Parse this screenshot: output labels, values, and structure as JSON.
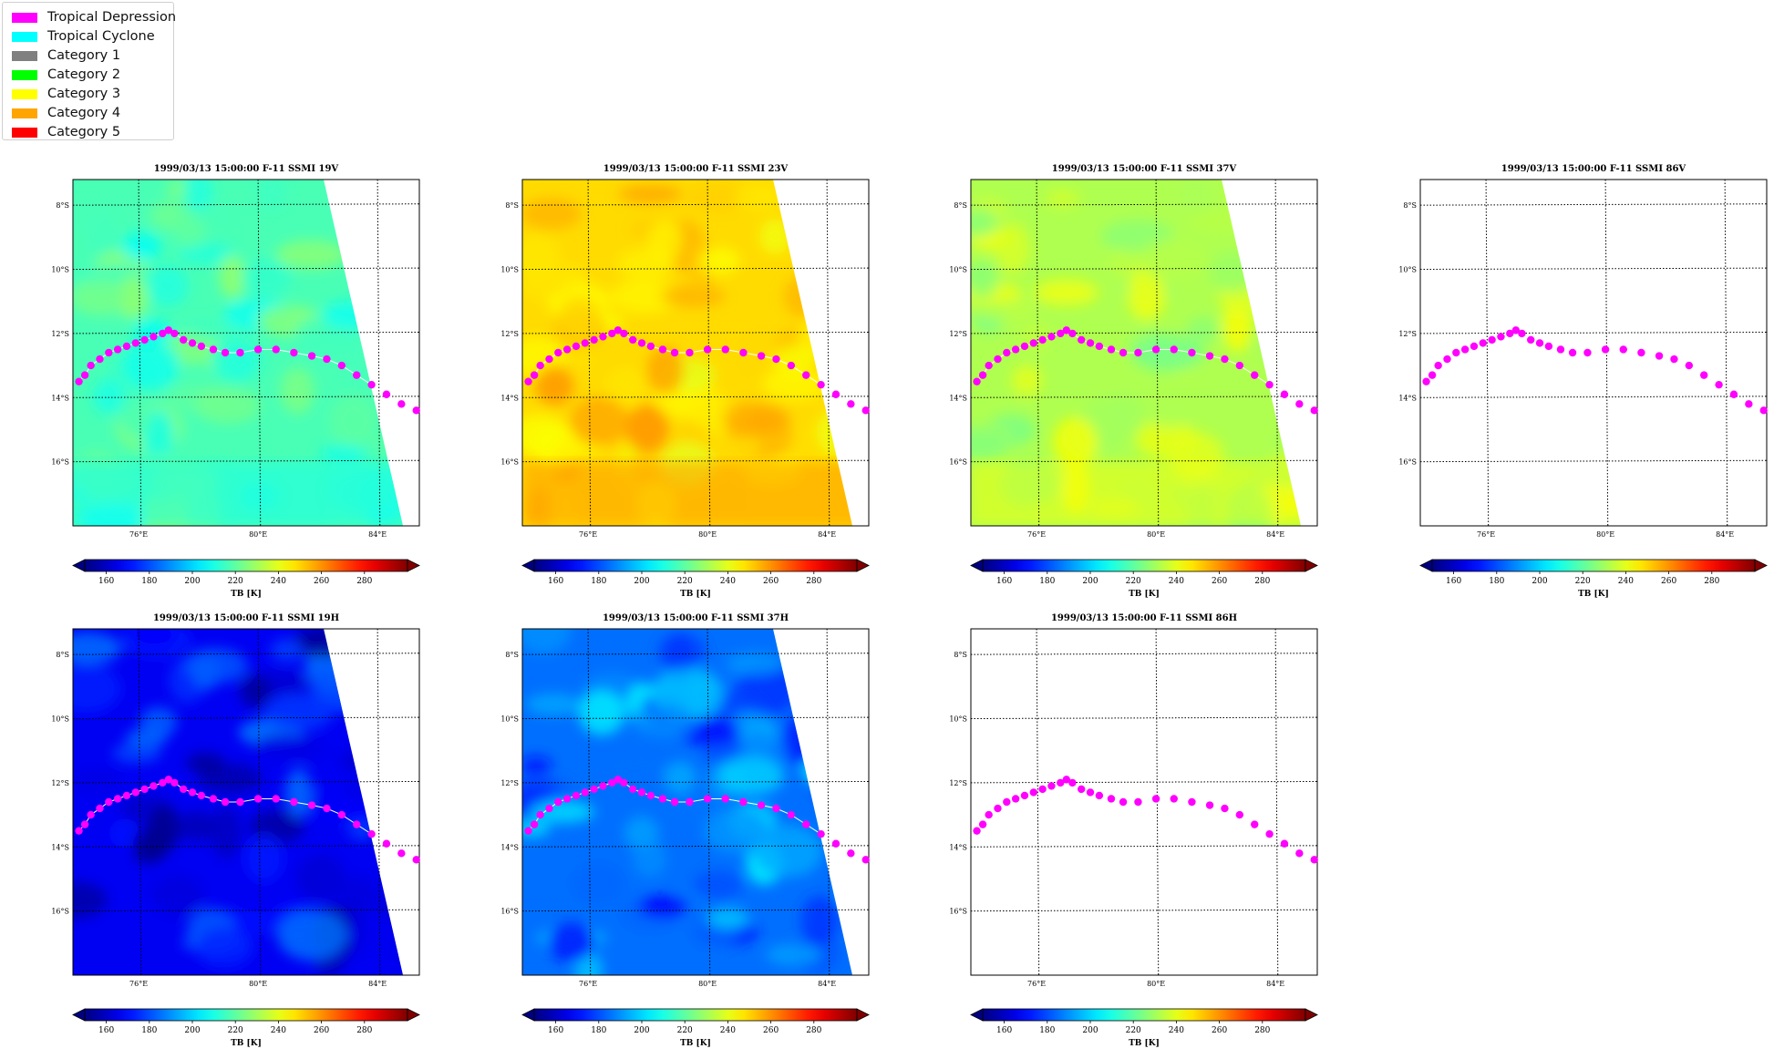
{
  "legend": {
    "items": [
      {
        "label": "Tropical Depression",
        "color": "#ff00ff"
      },
      {
        "label": "Tropical Cyclone",
        "color": "#00ffff"
      },
      {
        "label": "Category 1",
        "color": "#808080"
      },
      {
        "label": "Category 2",
        "color": "#00ff00"
      },
      {
        "label": "Category 3",
        "color": "#ffff00"
      },
      {
        "label": "Category 4",
        "color": "#ffa500"
      },
      {
        "label": "Category 5",
        "color": "#ff0000"
      }
    ]
  },
  "colorbar": {
    "label": "TB [K]",
    "ticks": [
      "160",
      "180",
      "200",
      "220",
      "240",
      "260",
      "280"
    ],
    "range": [
      150,
      300
    ],
    "colormap": "jet",
    "extend": "both"
  },
  "track_color": "#ff00ff",
  "chart_data": [
    {
      "type": "heatmap",
      "title": "1999/03/13 15:00:00  F-11 SSMI 19V",
      "channel": "19V",
      "field_level": 217,
      "swath": true,
      "lat_ticks": [
        "8°S",
        "10°S",
        "12°S",
        "14°S",
        "16°S"
      ],
      "lon_ticks": [
        "76°E",
        "80°E",
        "84°E"
      ]
    },
    {
      "type": "heatmap",
      "title": "1999/03/13 15:00:00  F-11 SSMI 23V",
      "channel": "23V",
      "field_level": 249,
      "swath": true,
      "lat_ticks": [
        "8°S",
        "10°S",
        "12°S",
        "14°S",
        "16°S"
      ],
      "lon_ticks": [
        "76°E",
        "80°E",
        "84°E"
      ]
    },
    {
      "type": "heatmap",
      "title": "1999/03/13 15:00:00  F-11 SSMI 37V",
      "channel": "37V",
      "field_level": 232,
      "swath": true,
      "lat_ticks": [
        "8°S",
        "10°S",
        "12°S",
        "14°S",
        "16°S"
      ],
      "lon_ticks": [
        "76°E",
        "80°E",
        "84°E"
      ]
    },
    {
      "type": "heatmap",
      "title": "1999/03/13 15:00:00  F-11 SSMI 86V",
      "channel": "86V",
      "field_level": null,
      "swath": false,
      "lat_ticks": [
        "8°S",
        "10°S",
        "12°S",
        "14°S",
        "16°S"
      ],
      "lon_ticks": [
        "76°E",
        "80°E",
        "84°E"
      ]
    },
    {
      "type": "heatmap",
      "title": "1999/03/13 15:00:00  F-11 SSMI 19H",
      "channel": "19H",
      "field_level": 167,
      "swath": true,
      "lat_ticks": [
        "8°S",
        "10°S",
        "12°S",
        "14°S",
        "16°S"
      ],
      "lon_ticks": [
        "76°E",
        "80°E",
        "84°E"
      ]
    },
    {
      "type": "heatmap",
      "title": "1999/03/13 15:00:00  F-11 SSMI 37H",
      "channel": "37H",
      "field_level": 185,
      "swath": true,
      "lat_ticks": [
        "8°S",
        "10°S",
        "12°S",
        "14°S",
        "16°S"
      ],
      "lon_ticks": [
        "76°E",
        "80°E",
        "84°E"
      ]
    },
    {
      "type": "heatmap",
      "title": "1999/03/13 15:00:00  F-11 SSMI 86H",
      "channel": "86H",
      "field_level": null,
      "swath": false,
      "lat_ticks": [
        "8°S",
        "10°S",
        "12°S",
        "14°S",
        "16°S"
      ],
      "lon_ticks": [
        "76°E",
        "80°E",
        "84°E"
      ]
    }
  ],
  "track": [
    {
      "lon": 74.0,
      "lat": -13.5,
      "category": "Tropical Depression"
    },
    {
      "lon": 74.2,
      "lat": -13.3,
      "category": "Tropical Depression"
    },
    {
      "lon": 74.4,
      "lat": -13.0,
      "category": "Tropical Depression"
    },
    {
      "lon": 74.7,
      "lat": -12.8,
      "category": "Tropical Depression"
    },
    {
      "lon": 75.0,
      "lat": -12.6,
      "category": "Tropical Depression"
    },
    {
      "lon": 75.3,
      "lat": -12.5,
      "category": "Tropical Depression"
    },
    {
      "lon": 75.6,
      "lat": -12.4,
      "category": "Tropical Depression"
    },
    {
      "lon": 75.9,
      "lat": -12.3,
      "category": "Tropical Depression"
    },
    {
      "lon": 76.2,
      "lat": -12.2,
      "category": "Tropical Depression"
    },
    {
      "lon": 76.5,
      "lat": -12.1,
      "category": "Tropical Depression"
    },
    {
      "lon": 76.8,
      "lat": -12.0,
      "category": "Tropical Depression"
    },
    {
      "lon": 77.0,
      "lat": -11.9,
      "category": "Tropical Depression"
    },
    {
      "lon": 77.2,
      "lat": -12.0,
      "category": "Tropical Depression"
    },
    {
      "lon": 77.5,
      "lat": -12.2,
      "category": "Tropical Depression"
    },
    {
      "lon": 77.8,
      "lat": -12.3,
      "category": "Tropical Depression"
    },
    {
      "lon": 78.1,
      "lat": -12.4,
      "category": "Tropical Depression"
    },
    {
      "lon": 78.5,
      "lat": -12.5,
      "category": "Tropical Depression"
    },
    {
      "lon": 78.9,
      "lat": -12.6,
      "category": "Tropical Depression"
    },
    {
      "lon": 79.4,
      "lat": -12.6,
      "category": "Tropical Depression"
    },
    {
      "lon": 80.0,
      "lat": -12.5,
      "category": "Tropical Depression"
    },
    {
      "lon": 80.6,
      "lat": -12.5,
      "category": "Tropical Depression"
    },
    {
      "lon": 81.2,
      "lat": -12.6,
      "category": "Tropical Depression"
    },
    {
      "lon": 81.8,
      "lat": -12.7,
      "category": "Tropical Depression"
    },
    {
      "lon": 82.3,
      "lat": -12.8,
      "category": "Tropical Depression"
    },
    {
      "lon": 82.8,
      "lat": -13.0,
      "category": "Tropical Depression"
    },
    {
      "lon": 83.3,
      "lat": -13.3,
      "category": "Tropical Depression"
    },
    {
      "lon": 83.8,
      "lat": -13.6,
      "category": "Tropical Depression"
    },
    {
      "lon": 84.3,
      "lat": -13.9,
      "category": "Tropical Depression"
    },
    {
      "lon": 84.8,
      "lat": -14.2,
      "category": "Tropical Depression"
    },
    {
      "lon": 85.3,
      "lat": -14.4,
      "category": "Tropical Depression"
    }
  ]
}
